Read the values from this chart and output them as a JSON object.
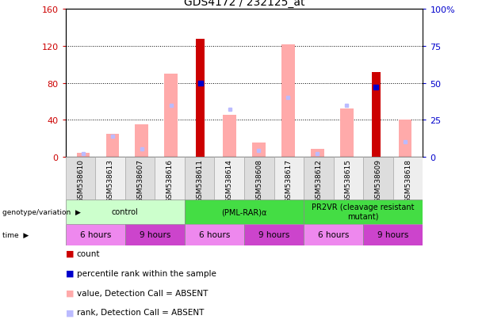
{
  "title": "GDS4172 / 232125_at",
  "samples": [
    "GSM538610",
    "GSM538613",
    "GSM538607",
    "GSM538616",
    "GSM538611",
    "GSM538614",
    "GSM538608",
    "GSM538617",
    "GSM538612",
    "GSM538615",
    "GSM538609",
    "GSM538618"
  ],
  "red_bars": [
    0,
    0,
    0,
    0,
    128,
    0,
    0,
    0,
    0,
    0,
    92,
    0
  ],
  "pink_bars": [
    4,
    25,
    35,
    90,
    0,
    45,
    15,
    122,
    8,
    52,
    0,
    40
  ],
  "blue_markers": [
    null,
    null,
    null,
    null,
    50,
    null,
    null,
    null,
    null,
    null,
    47,
    null
  ],
  "light_blue_markers": [
    2,
    14,
    5,
    35,
    null,
    32,
    4,
    40,
    2,
    35,
    null,
    10
  ],
  "ylim_left": [
    0,
    160
  ],
  "ylim_right": [
    0,
    100
  ],
  "yticks_left": [
    0,
    40,
    80,
    120,
    160
  ],
  "yticks_left_labels": [
    "0",
    "40",
    "80",
    "120",
    "160"
  ],
  "yticks_right": [
    0,
    25,
    50,
    75,
    100
  ],
  "yticks_right_labels": [
    "0",
    "25",
    "50",
    "75",
    "100%"
  ],
  "left_yaxis_color": "#cc0000",
  "right_yaxis_color": "#0000cc",
  "red_bar_color": "#cc0000",
  "pink_bar_color": "#ffaaaa",
  "blue_marker_color": "#0000cc",
  "light_blue_marker_color": "#bbbbff",
  "genotype_groups": [
    {
      "label": "control",
      "start": 0,
      "end": 4,
      "color": "#ccffcc"
    },
    {
      "label": "(PML-RAR)α",
      "start": 4,
      "end": 8,
      "color": "#44dd44"
    },
    {
      "label": "PR2VR (cleavage resistant\nmutant)",
      "start": 8,
      "end": 12,
      "color": "#44dd44"
    }
  ],
  "time_groups": [
    {
      "label": "6 hours",
      "start": 0,
      "end": 2,
      "color": "#ee88ee"
    },
    {
      "label": "9 hours",
      "start": 2,
      "end": 4,
      "color": "#cc44cc"
    },
    {
      "label": "6 hours",
      "start": 4,
      "end": 6,
      "color": "#ee88ee"
    },
    {
      "label": "9 hours",
      "start": 6,
      "end": 8,
      "color": "#cc44cc"
    },
    {
      "label": "6 hours",
      "start": 8,
      "end": 10,
      "color": "#ee88ee"
    },
    {
      "label": "9 hours",
      "start": 10,
      "end": 12,
      "color": "#cc44cc"
    }
  ],
  "legend_items": [
    {
      "label": "count",
      "color": "#cc0000"
    },
    {
      "label": "percentile rank within the sample",
      "color": "#0000cc"
    },
    {
      "label": "value, Detection Call = ABSENT",
      "color": "#ffaaaa"
    },
    {
      "label": "rank, Detection Call = ABSENT",
      "color": "#bbbbff"
    }
  ],
  "sample_cell_color_odd": "#dddddd",
  "sample_cell_color_even": "#eeeeee",
  "figsize": [
    6.13,
    4.14
  ],
  "dpi": 100
}
